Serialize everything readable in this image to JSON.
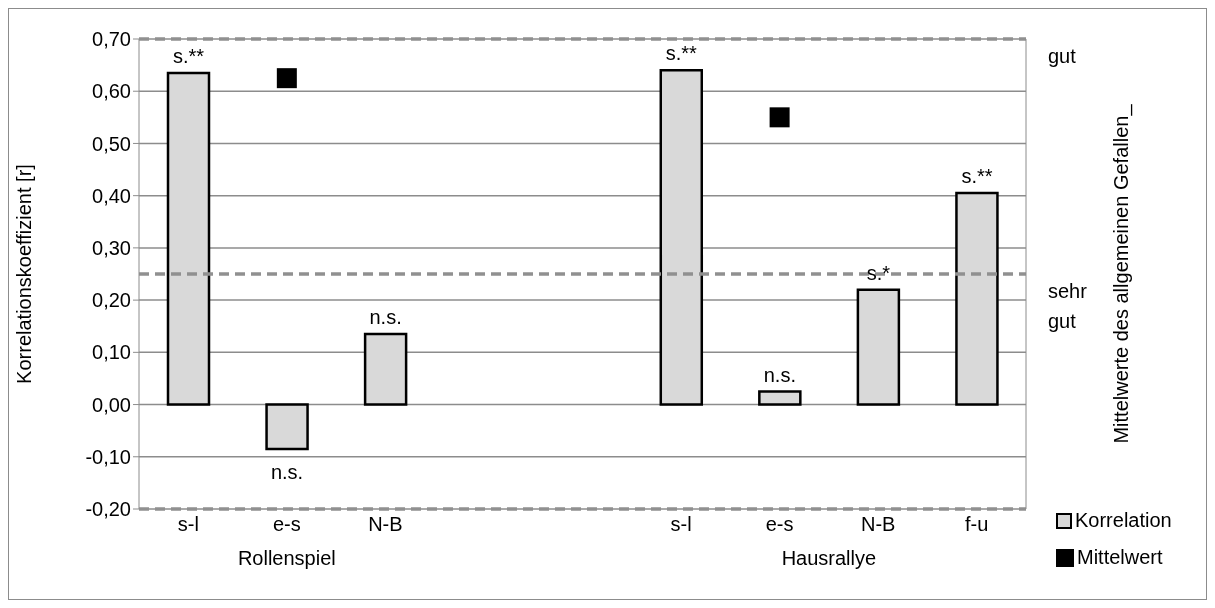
{
  "chart_data": {
    "type": "bar",
    "ylabel": "Korrelationskoeffizient [r]",
    "y2label": "Mittelwerte des allgemeinen Gefallen_",
    "categories": [
      "s-l",
      "e-s",
      "N-B",
      null,
      null,
      "s-l",
      "e-s",
      "N-B",
      "f-u"
    ],
    "series": [
      {
        "name": "Korrelation",
        "color": "#d9d9d9",
        "values": [
          0.635,
          -0.085,
          0.135,
          null,
          null,
          0.64,
          0.025,
          0.22,
          0.405
        ],
        "value_labels": [
          "s.**",
          "n.s.",
          "n.s.",
          null,
          null,
          "s.**",
          "n.s.",
          "s.*",
          "s.**"
        ]
      },
      {
        "name": "Mittelwert",
        "type": "scatter",
        "color": "#000000",
        "marker": "square",
        "values": [
          null,
          0.625,
          null,
          null,
          null,
          null,
          0.55,
          null,
          null
        ]
      }
    ],
    "ylim": [
      -0.2,
      0.7
    ],
    "yticks": [
      {
        "value": -0.2,
        "label": "-0,20"
      },
      {
        "value": -0.1,
        "label": "-0,10"
      },
      {
        "value": 0,
        "label": "0,00"
      },
      {
        "value": 0.1,
        "label": "0,10"
      },
      {
        "value": 0.2,
        "label": "0,20"
      },
      {
        "value": 0.3,
        "label": "0,30"
      },
      {
        "value": 0.4,
        "label": "0,40"
      },
      {
        "value": 0.5,
        "label": "0,50"
      },
      {
        "value": 0.6,
        "label": "0,60"
      },
      {
        "value": 0.7,
        "label": "0,70"
      }
    ],
    "ref_lines": [
      {
        "axis": "y",
        "value": 0.7,
        "label": "gut",
        "color": "#909090",
        "line_style": "dashed"
      },
      {
        "axis": "y",
        "value": 0.25,
        "label": "sehr gut",
        "color": "#909090",
        "line_style": "dashed"
      },
      {
        "axis": "y",
        "value": -0.2,
        "color": "#909090",
        "line_style": "dashed"
      }
    ],
    "grid": "y",
    "legend": "bottom right",
    "annotations": [
      "Rollenspiel",
      "Hausrallye"
    ]
  }
}
